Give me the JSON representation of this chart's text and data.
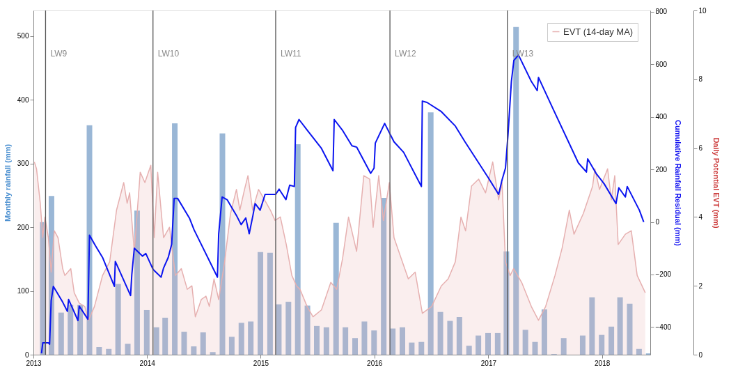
{
  "chart_data": {
    "type": "bar",
    "xlim": [
      "2013-01-01",
      "2018-06-05"
    ],
    "xticks": [
      "2013",
      "2014",
      "2015",
      "2016",
      "2017",
      "2018"
    ],
    "ylim": [
      0,
      540
    ],
    "yticks": [
      0,
      100,
      200,
      300,
      400,
      500
    ],
    "ylabel": "Monthly rainfall (mm)",
    "y2lim": [
      -505,
      805
    ],
    "y2ticks": [
      -400,
      -200,
      0,
      200,
      400,
      600,
      800
    ],
    "y2label": "Cumulative Rainfall Residual (mm)",
    "y3lim": [
      0,
      10
    ],
    "y3ticks": [
      0,
      2,
      4,
      6,
      8,
      10
    ],
    "y3label": "Daily Potential EVT (mm)",
    "legend": "top right",
    "ref_lines": [
      {
        "axis": "x",
        "value": "2013-02-09",
        "label": "LW9",
        "color": "#555555"
      },
      {
        "axis": "x",
        "value": "2014-01-20",
        "label": "LW10",
        "color": "#555555"
      },
      {
        "axis": "x",
        "value": "2015-02-18",
        "label": "LW11",
        "color": "#555555"
      },
      {
        "axis": "x",
        "value": "2016-02-20",
        "label": "LW12",
        "color": "#555555"
      },
      {
        "axis": "x",
        "value": "2017-03-03",
        "label": "LW13",
        "color": "#555555"
      }
    ],
    "series": [
      {
        "color": "#9ab7d6",
        "x": [
          "2013-01-31",
          "2013-02-28",
          "2013-03-31",
          "2013-04-30",
          "2013-05-31",
          "2013-06-30",
          "2013-07-31",
          "2013-08-31",
          "2013-09-30",
          "2013-10-31",
          "2013-11-30",
          "2013-12-31",
          "2014-01-31",
          "2014-02-28",
          "2014-03-31",
          "2014-04-30",
          "2014-05-31",
          "2014-06-30",
          "2014-07-31",
          "2014-08-31",
          "2014-09-30",
          "2014-10-31",
          "2014-11-30",
          "2014-12-31",
          "2015-01-31",
          "2015-02-28",
          "2015-03-31",
          "2015-04-30",
          "2015-05-31",
          "2015-06-30",
          "2015-07-31",
          "2015-08-31",
          "2015-09-30",
          "2015-10-31",
          "2015-11-30",
          "2015-12-31",
          "2016-01-31",
          "2016-02-29",
          "2016-03-31",
          "2016-04-30",
          "2016-05-31",
          "2016-06-30",
          "2016-07-31",
          "2016-08-31",
          "2016-09-30",
          "2016-10-31",
          "2016-11-30",
          "2016-12-31",
          "2017-01-31",
          "2017-02-28",
          "2017-03-31",
          "2017-04-30",
          "2017-05-31",
          "2017-06-30",
          "2017-07-31",
          "2017-08-31",
          "2017-09-30",
          "2017-10-31",
          "2017-11-30",
          "2017-12-31",
          "2018-01-31",
          "2018-02-28",
          "2018-03-31",
          "2018-04-30",
          "2018-05-31"
        ],
        "values": [
          208,
          249,
          66,
          78,
          78,
          360,
          12,
          9,
          111,
          17,
          226,
          70,
          43,
          58,
          363,
          36,
          13,
          35,
          4,
          347,
          28,
          50,
          52,
          161,
          160,
          79,
          83,
          330,
          77,
          45,
          43,
          207,
          43,
          26,
          52,
          38,
          246,
          41,
          43,
          19,
          20,
          380,
          67,
          53,
          59,
          14,
          30,
          34,
          34,
          162,
          514,
          39,
          20,
          71,
          1,
          26,
          0,
          30,
          90,
          31,
          44,
          90,
          80,
          9,
          2
        ]
      },
      {
        "type": "area",
        "axis": "y3",
        "name": "EVT (14-day MA)",
        "color": "#e6b0b0",
        "x": [
          "2013-01-04",
          "2013-01-11",
          "2013-01-23",
          "2013-01-31",
          "2013-02-07",
          "2013-02-18",
          "2013-02-27",
          "2013-03-09",
          "2013-03-21",
          "2013-04-05",
          "2013-04-12",
          "2013-05-01",
          "2013-05-12",
          "2013-05-28",
          "2013-06-15",
          "2013-06-27",
          "2013-07-16",
          "2013-08-11",
          "2013-09-03",
          "2013-09-25",
          "2013-10-18",
          "2013-10-29",
          "2013-11-06",
          "2013-11-21",
          "2013-12-10",
          "2013-12-25",
          "2014-01-13",
          "2014-01-24",
          "2014-02-04",
          "2014-02-23",
          "2014-03-14",
          "2014-04-02",
          "2014-04-21",
          "2014-05-10",
          "2014-05-25",
          "2014-06-05",
          "2014-06-24",
          "2014-07-09",
          "2014-07-20",
          "2014-08-04",
          "2014-08-19",
          "2014-09-07",
          "2014-09-26",
          "2014-10-15",
          "2014-10-26",
          "2014-11-10",
          "2014-11-21",
          "2014-12-06",
          "2014-12-25",
          "2015-01-13",
          "2015-02-01",
          "2015-02-16",
          "2015-03-05",
          "2015-03-24",
          "2015-04-11",
          "2015-04-26",
          "2015-05-07",
          "2015-05-30",
          "2015-06-18",
          "2015-07-15",
          "2015-08-14",
          "2015-09-02",
          "2015-09-21",
          "2015-10-10",
          "2015-11-05",
          "2015-11-28",
          "2015-12-17",
          "2015-12-28",
          "2016-01-15",
          "2016-01-30",
          "2016-02-18",
          "2016-03-04",
          "2016-03-27",
          "2016-04-19",
          "2016-05-11",
          "2016-06-03",
          "2016-07-03",
          "2016-08-03",
          "2016-08-25",
          "2016-09-17",
          "2016-10-05",
          "2016-10-20",
          "2016-11-08",
          "2016-12-01",
          "2016-12-23",
          "2017-01-15",
          "2017-02-03",
          "2017-02-14",
          "2017-02-25",
          "2017-03-12",
          "2017-03-23",
          "2017-04-18",
          "2017-05-19",
          "2017-06-11",
          "2017-07-04",
          "2017-08-03",
          "2017-08-26",
          "2017-09-18",
          "2017-10-03",
          "2017-11-02",
          "2017-12-02",
          "2017-12-09",
          "2017-12-24",
          "2018-01-19",
          "2018-01-31",
          "2018-02-11",
          "2018-02-22",
          "2018-03-17",
          "2018-04-05",
          "2018-04-24",
          "2018-05-20"
        ],
        "values": [
          5.6,
          5.4,
          4.4,
          3.4,
          4.0,
          3.4,
          2.4,
          3.6,
          3.4,
          2.5,
          2.3,
          2.5,
          1.8,
          1.5,
          1.4,
          1.0,
          1.4,
          2.3,
          2.7,
          4.2,
          5.0,
          4.4,
          4.7,
          3.0,
          5.3,
          5.0,
          5.5,
          3.4,
          5.3,
          3.4,
          3.7,
          2.3,
          2.5,
          1.9,
          2.0,
          1.1,
          1.6,
          1.7,
          1.4,
          2.2,
          1.6,
          2.7,
          4.1,
          4.8,
          4.2,
          4.8,
          5.2,
          4.2,
          4.8,
          4.5,
          4.2,
          3.9,
          4.0,
          3.2,
          2.3,
          2.0,
          1.9,
          1.4,
          1.1,
          1.3,
          2.1,
          1.9,
          2.8,
          4.0,
          3.0,
          5.2,
          5.1,
          3.7,
          5.2,
          3.9,
          5.0,
          3.4,
          2.8,
          2.2,
          2.4,
          1.2,
          1.4,
          2.0,
          2.2,
          2.7,
          4.0,
          3.6,
          4.9,
          5.1,
          4.7,
          5.6,
          4.5,
          5.0,
          2.7,
          2.3,
          2.5,
          2.1,
          1.4,
          1.0,
          1.4,
          2.3,
          3.1,
          4.2,
          3.5,
          4.1,
          4.9,
          5.4,
          4.8,
          5.4,
          4.5,
          5.2,
          3.2,
          3.5,
          3.6,
          2.3,
          1.8
        ]
      },
      {
        "type": "line",
        "axis": "y2",
        "color": "#0a14f0",
        "x": [
          "2013-01-27",
          "2013-01-31",
          "2013-02-18",
          "2013-02-22",
          "2013-02-27",
          "2013-03-06",
          "2013-04-05",
          "2013-04-20",
          "2013-04-24",
          "2013-05-09",
          "2013-05-24",
          "2013-05-28",
          "2013-06-25",
          "2013-06-30",
          "2013-07-19",
          "2013-08-11",
          "2013-09-18",
          "2013-09-21",
          "2013-11-09",
          "2013-11-13",
          "2013-11-21",
          "2013-12-17",
          "2013-12-28",
          "2014-01-20",
          "2014-02-15",
          "2014-02-23",
          "2014-03-10",
          "2014-03-21",
          "2014-03-29",
          "2014-04-09",
          "2014-05-17",
          "2014-06-01",
          "2014-08-15",
          "2014-08-19",
          "2014-08-30",
          "2014-09-15",
          "2014-10-15",
          "2014-10-30",
          "2014-11-14",
          "2014-11-25",
          "2014-12-07",
          "2014-12-14",
          "2014-12-30",
          "2015-01-15",
          "2015-02-18",
          "2015-03-01",
          "2015-03-23",
          "2015-04-04",
          "2015-04-19",
          "2015-04-23",
          "2015-05-04",
          "2015-05-30",
          "2015-07-15",
          "2015-08-21",
          "2015-08-25",
          "2015-09-20",
          "2015-10-21",
          "2015-11-05",
          "2015-12-20",
          "2015-12-31",
          "2016-01-04",
          "2016-02-03",
          "2016-03-04",
          "2016-04-04",
          "2016-05-31",
          "2016-06-03",
          "2016-06-18",
          "2016-08-03",
          "2016-09-17",
          "2016-10-18",
          "2016-12-31",
          "2017-02-03",
          "2017-02-14",
          "2017-02-25",
          "2017-03-05",
          "2017-03-16",
          "2017-03-24",
          "2017-04-08",
          "2017-05-19",
          "2017-06-07",
          "2017-06-11",
          "2017-07-30",
          "2017-10-17",
          "2017-11-12",
          "2017-11-16",
          "2017-12-13",
          "2018-01-08",
          "2018-02-15",
          "2018-02-24",
          "2018-03-17",
          "2018-03-23",
          "2018-05-01",
          "2018-05-15"
        ],
        "values": [
          -500,
          -460,
          -460,
          -465,
          -300,
          -245,
          -305,
          -340,
          -295,
          -335,
          -375,
          -320,
          -370,
          -50,
          -90,
          -135,
          -245,
          -150,
          -280,
          -200,
          -100,
          -130,
          -120,
          -180,
          -210,
          -175,
          -135,
          -85,
          90,
          90,
          15,
          -30,
          -210,
          -45,
          95,
          85,
          25,
          -10,
          15,
          -45,
          25,
          70,
          45,
          105,
          105,
          125,
          85,
          140,
          135,
          360,
          390,
          350,
          280,
          195,
          390,
          350,
          290,
          285,
          185,
          205,
          300,
          375,
          305,
          265,
          135,
          460,
          455,
          420,
          365,
          305,
          170,
          105,
          160,
          205,
          330,
          535,
          615,
          635,
          535,
          500,
          550,
          425,
          225,
          190,
          240,
          185,
          145,
          70,
          130,
          95,
          135,
          45,
          0
        ]
      }
    ]
  }
}
